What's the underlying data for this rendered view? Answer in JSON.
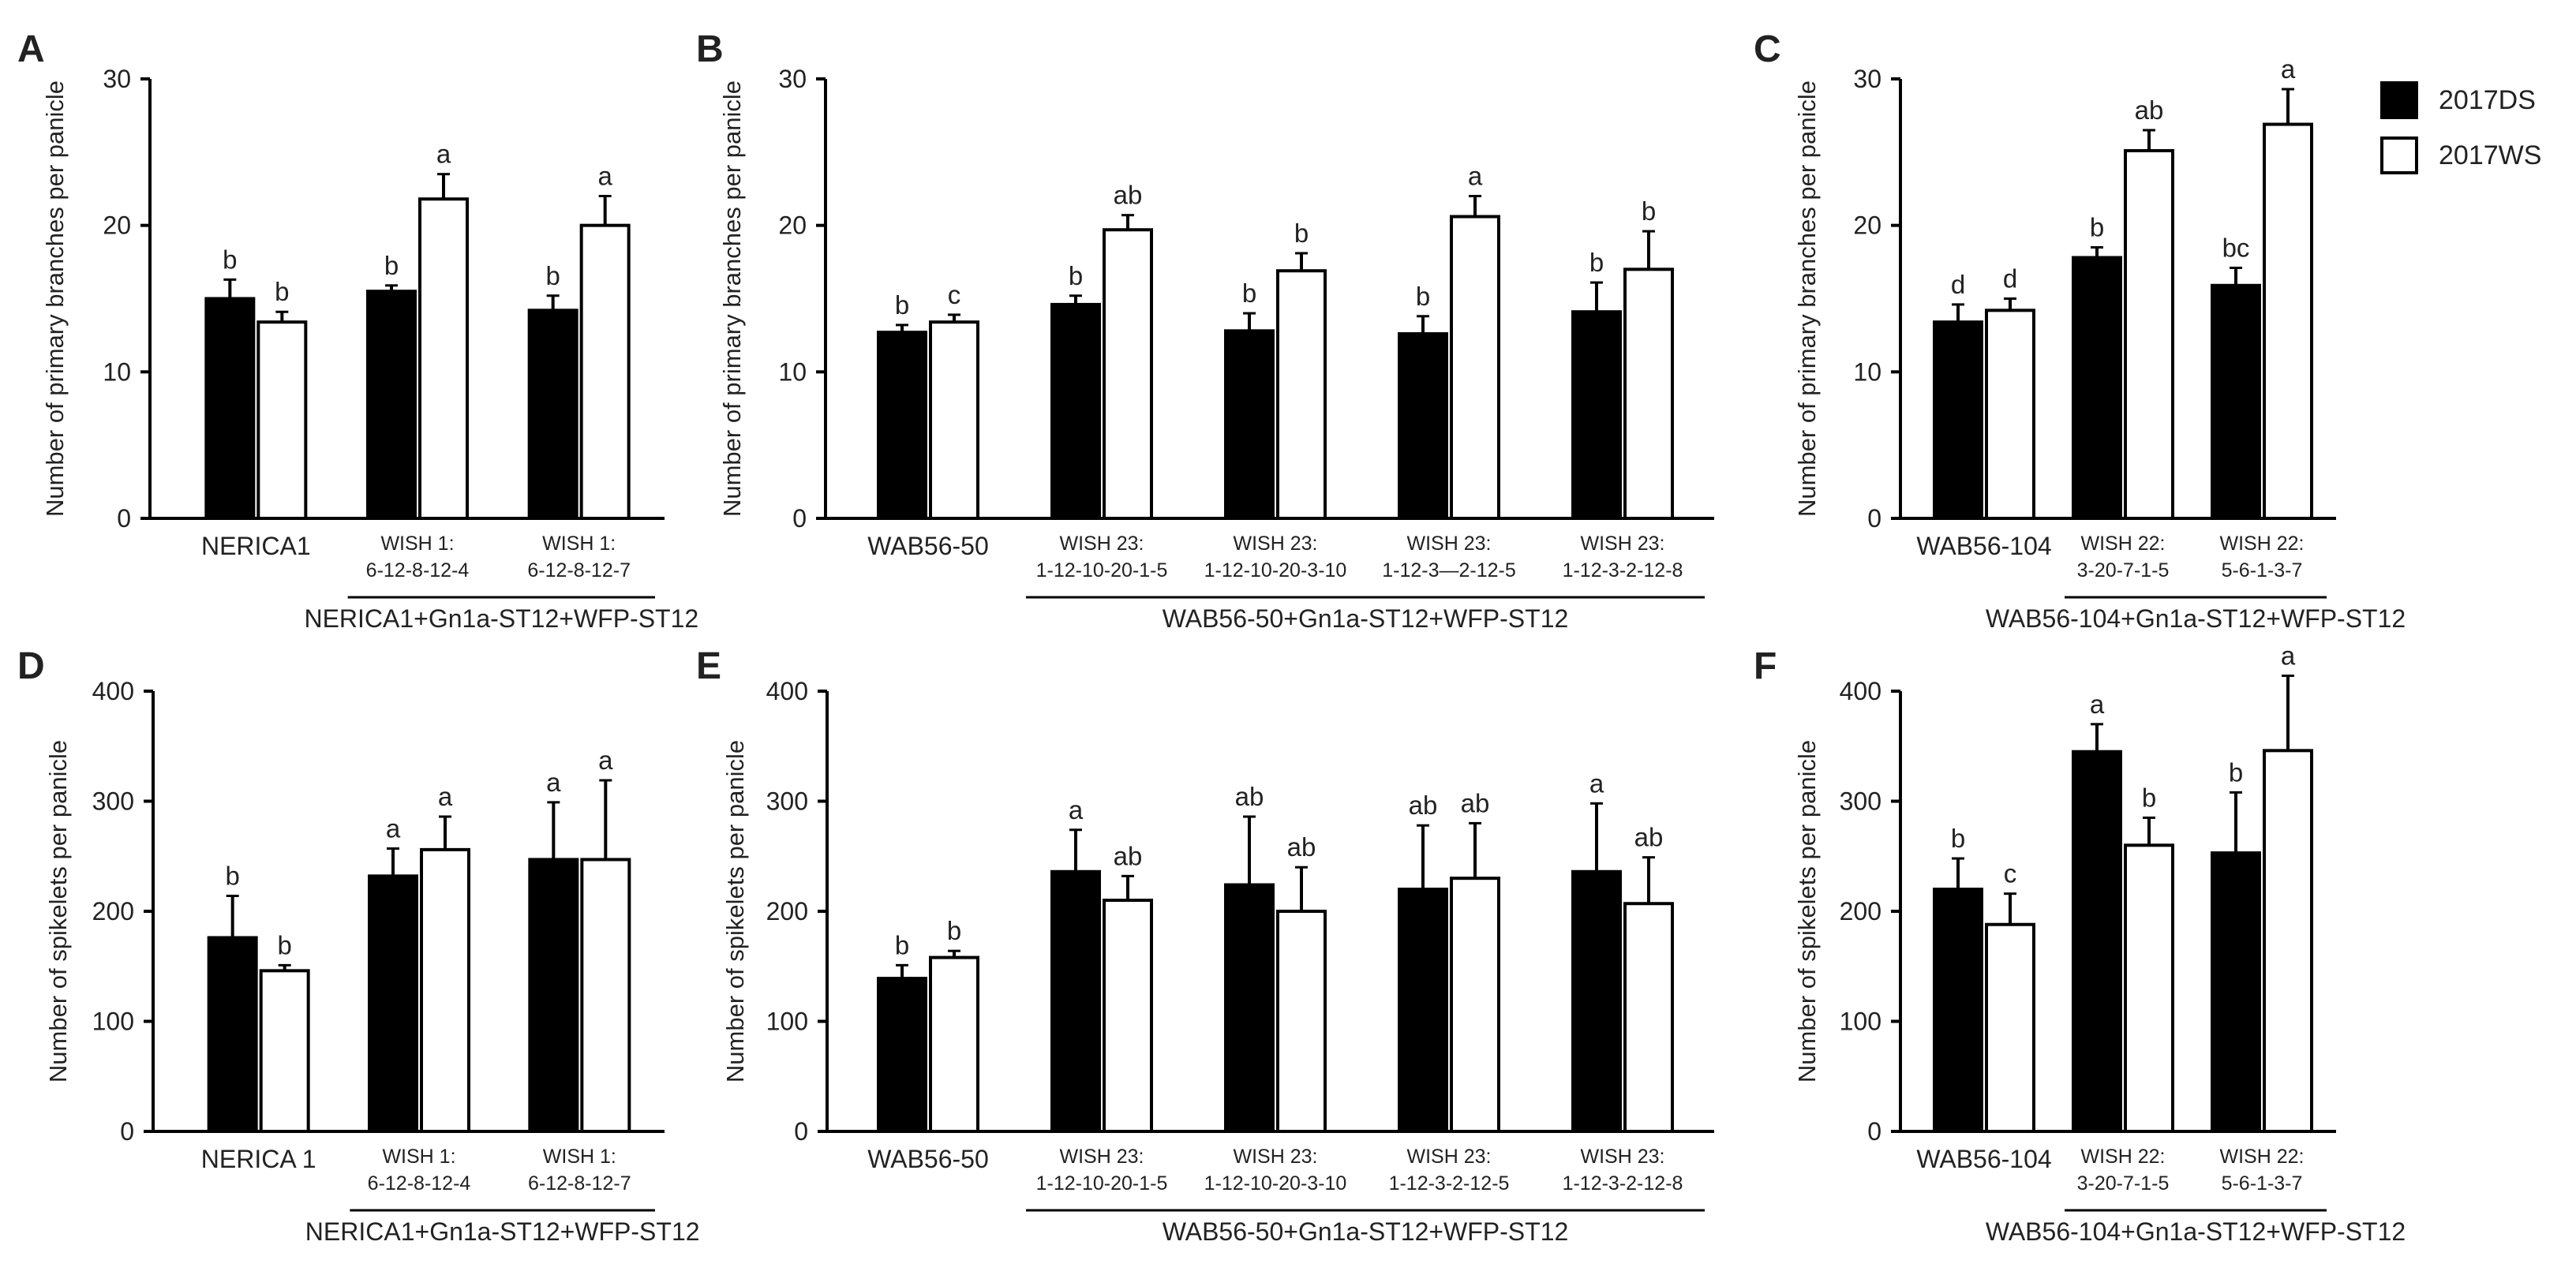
{
  "legend": {
    "series": [
      {
        "name": "2017DS",
        "color": "#000000"
      },
      {
        "name": "2017WS",
        "color": "#ffffff"
      }
    ]
  },
  "chart_data": [
    {
      "panel": "A",
      "type": "bar",
      "ylabel": "Number of primary branches per panicle",
      "ylim": [
        0,
        30
      ],
      "yticks": [
        0,
        10,
        20,
        30
      ],
      "categories": [
        "NERICA1",
        "WISH 1:\n6-12-8-12-4",
        "WISH 1:\n6-12-8-12-7"
      ],
      "group_label": "NERICA1+Gn1a-ST12+WFP-ST12",
      "group_start": 1,
      "series": [
        {
          "name": "2017DS",
          "values": [
            15.0,
            15.5,
            14.2
          ],
          "errors": [
            1.3,
            0.4,
            1.0
          ],
          "letters": [
            "b",
            "b",
            "b"
          ]
        },
        {
          "name": "2017WS",
          "values": [
            13.4,
            21.8,
            20.0
          ],
          "errors": [
            0.7,
            1.7,
            2.0
          ],
          "letters": [
            "b",
            "a",
            "a"
          ]
        }
      ]
    },
    {
      "panel": "B",
      "type": "bar",
      "ylabel": "Number of primary branches per panicle",
      "ylim": [
        0,
        30
      ],
      "yticks": [
        0,
        10,
        20,
        30
      ],
      "categories": [
        "WAB56-50",
        "WISH 23:\n1-12-10-20-1-5",
        "WISH 23:\n1-12-10-20-3-10",
        "WISH 23:\n1-12-3—2-12-5",
        "WISH 23:\n1-12-3-2-12-8"
      ],
      "group_label": "WAB56-50+Gn1a-ST12+WFP-ST12",
      "group_start": 1,
      "series": [
        {
          "name": "2017DS",
          "values": [
            12.7,
            14.6,
            12.8,
            12.6,
            14.1
          ],
          "errors": [
            0.5,
            0.6,
            1.2,
            1.2,
            2.0
          ],
          "letters": [
            "b",
            "b",
            "b",
            "b",
            "b"
          ]
        },
        {
          "name": "2017WS",
          "values": [
            13.4,
            19.7,
            16.9,
            20.6,
            17.0
          ],
          "errors": [
            0.5,
            1.0,
            1.2,
            1.4,
            2.6
          ],
          "letters": [
            "c",
            "ab",
            "b",
            "a",
            "b"
          ]
        }
      ]
    },
    {
      "panel": "C",
      "type": "bar",
      "ylabel": "Number of primary branches per panicle",
      "ylim": [
        0,
        30
      ],
      "yticks": [
        0,
        10,
        20,
        30
      ],
      "categories": [
        "WAB56-104",
        "WISH 22:\n3-20-7-1-5",
        "WISH 22:\n5-6-1-3-7"
      ],
      "group_label": "WAB56-104+Gn1a-ST12+WFP-ST12",
      "group_start": 1,
      "series": [
        {
          "name": "2017DS",
          "values": [
            13.4,
            17.8,
            15.9
          ],
          "errors": [
            1.2,
            0.7,
            1.2
          ],
          "letters": [
            "d",
            "b",
            "bc"
          ]
        },
        {
          "name": "2017WS",
          "values": [
            14.2,
            25.1,
            26.9
          ],
          "errors": [
            0.8,
            1.4,
            2.4
          ],
          "letters": [
            "d",
            "ab",
            "a"
          ]
        }
      ]
    },
    {
      "panel": "D",
      "type": "bar",
      "ylabel": "Number of spikelets per panicle",
      "ylim": [
        0,
        400
      ],
      "yticks": [
        0,
        100,
        200,
        300,
        400
      ],
      "categories": [
        "NERICA 1",
        "WISH 1:\n6-12-8-12-4",
        "WISH 1:\n6-12-8-12-7"
      ],
      "group_label": "NERICA1+Gn1a-ST12+WFP-ST12",
      "group_start": 1,
      "series": [
        {
          "name": "2017DS",
          "values": [
            176,
            232,
            247
          ],
          "errors": [
            38,
            25,
            52
          ],
          "letters": [
            "b",
            "a",
            "a"
          ]
        },
        {
          "name": "2017WS",
          "values": [
            146,
            256,
            247
          ],
          "errors": [
            5,
            30,
            72
          ],
          "letters": [
            "b",
            "a",
            "a"
          ]
        }
      ]
    },
    {
      "panel": "E",
      "type": "bar",
      "ylabel": "Number of spikelets per panicle",
      "ylim": [
        0,
        400
      ],
      "yticks": [
        0,
        100,
        200,
        300,
        400
      ],
      "categories": [
        "WAB56-50",
        "WISH 23:\n1-12-10-20-1-5",
        "WISH 23:\n1-12-10-20-3-10",
        "WISH 23:\n1-12-3-2-12-5",
        "WISH 23:\n1-12-3-2-12-8"
      ],
      "group_label": "WAB56-50+Gn1a-ST12+WFP-ST12",
      "group_start": 1,
      "series": [
        {
          "name": "2017DS",
          "values": [
            139,
            236,
            224,
            220,
            236
          ],
          "errors": [
            12,
            38,
            62,
            58,
            62
          ],
          "letters": [
            "b",
            "a",
            "ab",
            "ab",
            "a"
          ]
        },
        {
          "name": "2017WS",
          "values": [
            158,
            210,
            200,
            230,
            207
          ],
          "errors": [
            6,
            22,
            40,
            50,
            42
          ],
          "letters": [
            "b",
            "ab",
            "ab",
            "ab",
            "ab"
          ]
        }
      ]
    },
    {
      "panel": "F",
      "type": "bar",
      "ylabel": "Number of spikelets per panicle",
      "ylim": [
        0,
        400
      ],
      "yticks": [
        0,
        100,
        200,
        300,
        400
      ],
      "categories": [
        "WAB56-104",
        "WISH 22:\n3-20-7-1-5",
        "WISH 22:\n5-6-1-3-7"
      ],
      "group_label": "WAB56-104+Gn1a-ST12+WFP-ST12",
      "group_start": 1,
      "series": [
        {
          "name": "2017DS",
          "values": [
            220,
            345,
            253
          ],
          "errors": [
            28,
            25,
            55
          ],
          "letters": [
            "b",
            "a",
            "b"
          ]
        },
        {
          "name": "2017WS",
          "values": [
            188,
            260,
            346
          ],
          "errors": [
            28,
            25,
            68
          ],
          "letters": [
            "c",
            "b",
            "a"
          ]
        }
      ]
    }
  ]
}
